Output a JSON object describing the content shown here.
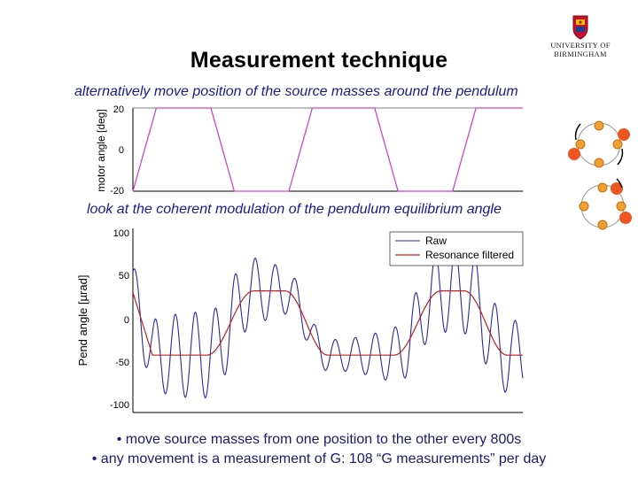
{
  "title": "Measurement technique",
  "subtitle_top": "alternatively move position of the source masses around the pendulum",
  "subtitle_bottom": "look at the coherent modulation of the pendulum equilibrium angle",
  "logo": {
    "line1": "UNIVERSITY OF",
    "line2": "BIRMINGHAM"
  },
  "bullets": [
    "• move source masses from one position to the other every 800s",
    "• any movement is a measurement of G: 108 “G measurements” per day"
  ],
  "colors": {
    "subtitle": "#1a1a8c",
    "motor_line": "#cc44cc",
    "raw_line": "#2a2aa0",
    "filtered_line": "#c02020",
    "mass_orange": "#ee5522"
  },
  "chart_data": [
    {
      "type": "line",
      "ylabel": "motor angle [deg]",
      "yticks": [
        "20",
        "0",
        "-20"
      ],
      "ylim": [
        -20,
        20
      ],
      "series": [
        {
          "values_description_free": true,
          "points": [
            [
              0,
              -20
            ],
            [
              0.06,
              20
            ],
            [
              0.2,
              20
            ],
            [
              0.26,
              -20
            ],
            [
              0.4,
              -20
            ],
            [
              0.46,
              20
            ],
            [
              0.62,
              20
            ],
            [
              0.68,
              -20
            ],
            [
              0.82,
              -20
            ],
            [
              0.88,
              20
            ],
            [
              1,
              20
            ]
          ]
        }
      ]
    },
    {
      "type": "line",
      "ylabel": "Pend angle [µrad]",
      "yticks": [
        "100",
        "50",
        "0",
        "-50",
        "-100"
      ],
      "ylim": [
        -100,
        100
      ],
      "legend": [
        "Raw",
        "Resonance filtered"
      ],
      "legend_position": "top-right",
      "filtered_levels": [
        -42,
        32
      ],
      "raw_amplitude": 45
    }
  ]
}
